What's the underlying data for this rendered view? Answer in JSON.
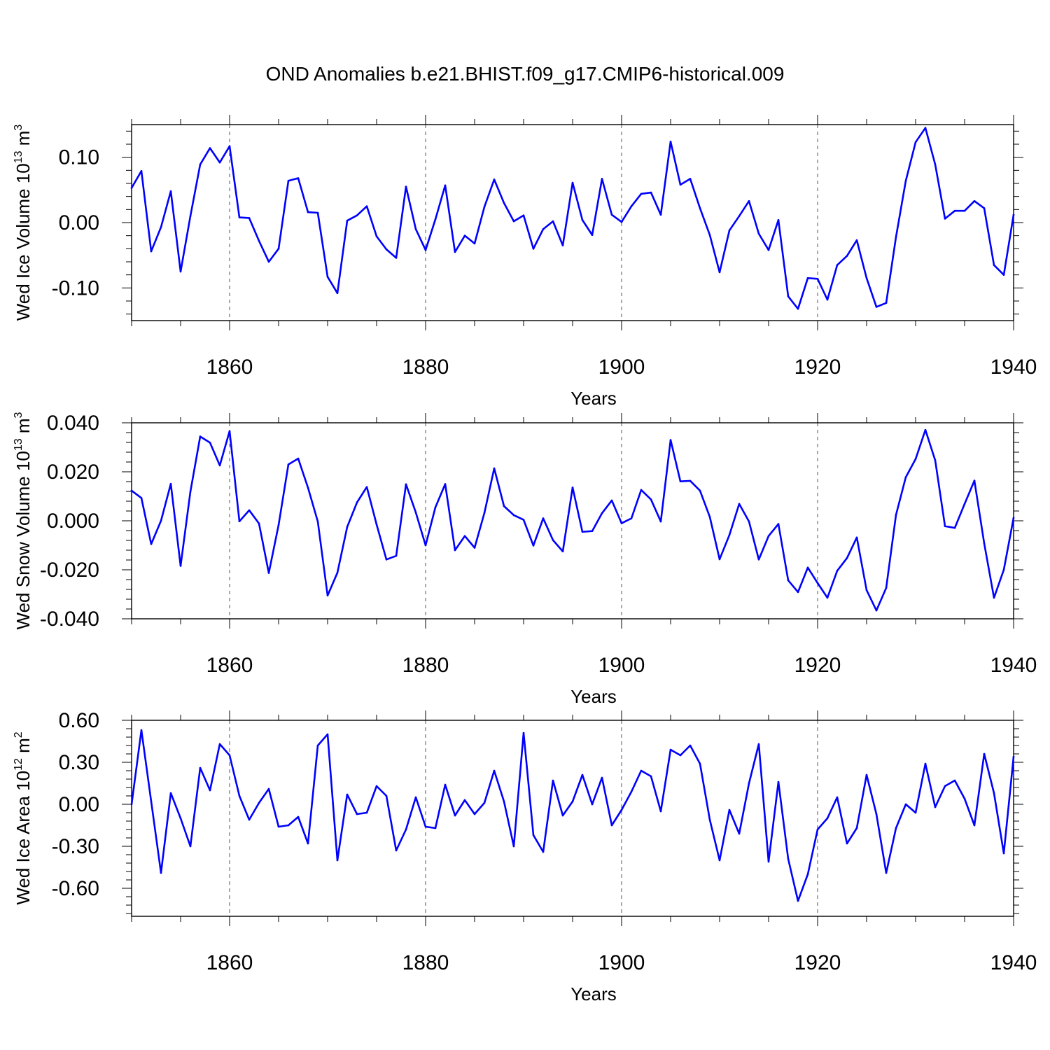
{
  "title": "OND Anomalies b.e21.BHIST.f09_g17.CMIP6-historical.009",
  "colors": {
    "series": "#0000ff",
    "axis": "#000000",
    "grid": "#555555"
  },
  "chart_data": [
    {
      "type": "line",
      "title": "OND Anomalies b.e21.BHIST.f09_g17.CMIP6-historical.009",
      "xlabel": "Years",
      "ylabel": "Wed Ice Volume 10",
      "ylabel_sup": "13",
      "ylabel_unit": " m",
      "ylabel_unit_sup": "3",
      "xlim": [
        1850,
        1940
      ],
      "ylim": [
        -0.15,
        0.15
      ],
      "yticks": [
        -0.1,
        0.0,
        0.1
      ],
      "yticklabels": [
        "-0.10",
        "0.00",
        "0.10"
      ],
      "xticks": [
        1860,
        1880,
        1900,
        1920,
        1940
      ],
      "xticklabels": [
        "1860",
        "1880",
        "1900",
        "1920",
        "1940"
      ],
      "grid": "x-dashed",
      "series": [
        {
          "name": "Wed Ice Volume",
          "x_start": 1850,
          "values": [
            0.053,
            0.079,
            -0.044,
            -0.007,
            0.048,
            -0.075,
            0.01,
            0.089,
            0.114,
            0.092,
            0.117,
            0.008,
            0.007,
            -0.028,
            -0.06,
            -0.04,
            0.064,
            0.068,
            0.016,
            0.015,
            -0.083,
            -0.108,
            0.003,
            0.011,
            0.025,
            -0.021,
            -0.041,
            -0.054,
            0.055,
            -0.01,
            -0.042,
            0.005,
            0.057,
            -0.045,
            -0.02,
            -0.032,
            0.024,
            0.066,
            0.03,
            0.002,
            0.011,
            -0.04,
            -0.01,
            0.002,
            -0.035,
            0.061,
            0.004,
            -0.019,
            0.067,
            0.012,
            0.001,
            0.025,
            0.044,
            0.046,
            0.012,
            0.124,
            0.058,
            0.067,
            0.022,
            -0.019,
            -0.076,
            -0.012,
            0.01,
            0.033,
            -0.017,
            -0.042,
            0.004,
            -0.113,
            -0.132,
            -0.085,
            -0.086,
            -0.118,
            -0.065,
            -0.051,
            -0.027,
            -0.085,
            -0.129,
            -0.123,
            -0.022,
            0.064,
            0.123,
            0.145,
            0.089,
            0.006,
            0.018,
            0.018,
            0.033,
            0.022,
            -0.065,
            -0.08,
            0.012
          ]
        }
      ]
    },
    {
      "type": "line",
      "xlabel": "Years",
      "ylabel": "Wed Snow Volume 10",
      "ylabel_sup": "13",
      "ylabel_unit": " m",
      "ylabel_unit_sup": "3",
      "xlim": [
        1850,
        1940
      ],
      "ylim": [
        -0.04,
        0.04
      ],
      "yticks": [
        -0.04,
        -0.02,
        0.0,
        0.02,
        0.04
      ],
      "yticklabels": [
        "-0.040",
        "-0.020",
        "0.000",
        "0.020",
        "0.040"
      ],
      "xticks": [
        1860,
        1880,
        1900,
        1920,
        1940
      ],
      "xticklabels": [
        "1860",
        "1880",
        "1900",
        "1920",
        "1940"
      ],
      "grid": "x-dashed",
      "series": [
        {
          "name": "Wed Snow Volume",
          "x_start": 1850,
          "values": [
            0.0123,
            0.0093,
            -0.0095,
            0.0,
            0.0151,
            -0.0184,
            0.0119,
            0.0344,
            0.0319,
            0.0226,
            0.0366,
            -0.0002,
            0.0043,
            -0.0011,
            -0.0213,
            -0.0017,
            0.023,
            0.0254,
            0.0135,
            -0.0003,
            -0.0305,
            -0.0212,
            -0.0025,
            0.0075,
            0.0138,
            -0.0015,
            -0.0158,
            -0.0143,
            0.0149,
            0.0034,
            -0.01,
            0.0055,
            0.015,
            -0.012,
            -0.0062,
            -0.011,
            0.0032,
            0.0214,
            0.006,
            0.0023,
            0.0004,
            -0.0101,
            0.001,
            -0.0079,
            -0.0125,
            0.0136,
            -0.0045,
            -0.0042,
            0.0031,
            0.0083,
            -0.001,
            0.001,
            0.0126,
            0.0087,
            -0.0003,
            0.033,
            0.0161,
            0.0163,
            0.0123,
            0.0016,
            -0.0157,
            -0.0058,
            0.0069,
            -0.0003,
            -0.0158,
            -0.0062,
            -0.0013,
            -0.0243,
            -0.0291,
            -0.0191,
            -0.0254,
            -0.0314,
            -0.0204,
            -0.0152,
            -0.0068,
            -0.0283,
            -0.0366,
            -0.0274,
            0.0024,
            0.0178,
            0.0252,
            0.0371,
            0.0247,
            -0.0022,
            -0.0029,
            0.0069,
            0.0164,
            -0.0092,
            -0.0314,
            -0.02,
            0.0012
          ]
        }
      ]
    },
    {
      "type": "line",
      "xlabel": "Years",
      "ylabel": "Wed Ice Area 10",
      "ylabel_sup": "12",
      "ylabel_unit": " m",
      "ylabel_unit_sup": "2",
      "xlim": [
        1850,
        1940
      ],
      "ylim": [
        -0.8,
        0.6
      ],
      "yticks": [
        -0.6,
        -0.3,
        0.0,
        0.3,
        0.6
      ],
      "yticklabels": [
        "-0.60",
        "-0.30",
        "0.00",
        "0.30",
        "0.60"
      ],
      "xticks": [
        1860,
        1880,
        1900,
        1920,
        1940
      ],
      "xticklabels": [
        "1860",
        "1880",
        "1900",
        "1920",
        "1940"
      ],
      "grid": "x-dashed",
      "series": [
        {
          "name": "Wed Ice Area",
          "x_start": 1850,
          "values": [
            0.0,
            0.53,
            0.02,
            -0.49,
            0.08,
            -0.1,
            -0.3,
            0.26,
            0.1,
            0.43,
            0.35,
            0.06,
            -0.11,
            0.01,
            0.11,
            -0.16,
            -0.15,
            -0.09,
            -0.28,
            0.42,
            0.5,
            -0.4,
            0.07,
            -0.07,
            -0.06,
            0.13,
            0.06,
            -0.33,
            -0.18,
            0.05,
            -0.16,
            -0.17,
            0.14,
            -0.08,
            0.03,
            -0.07,
            0.01,
            0.24,
            0.02,
            -0.3,
            0.51,
            -0.22,
            -0.34,
            0.17,
            -0.08,
            0.02,
            0.21,
            0.0,
            0.19,
            -0.15,
            -0.04,
            0.09,
            0.24,
            0.2,
            -0.05,
            0.39,
            0.35,
            0.42,
            0.29,
            -0.11,
            -0.4,
            -0.04,
            -0.21,
            0.15,
            0.43,
            -0.41,
            0.16,
            -0.39,
            -0.69,
            -0.5,
            -0.18,
            -0.1,
            0.05,
            -0.28,
            -0.17,
            0.21,
            -0.07,
            -0.49,
            -0.17,
            0.0,
            -0.06,
            0.29,
            -0.02,
            0.13,
            0.17,
            0.04,
            -0.15,
            0.36,
            0.08,
            -0.35,
            0.34
          ]
        }
      ]
    }
  ]
}
